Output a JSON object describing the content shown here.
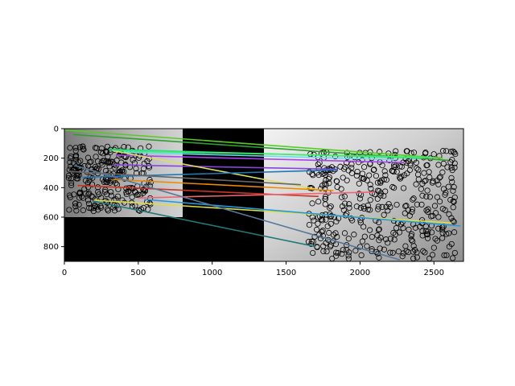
{
  "chart_data": {
    "type": "image-match-plot",
    "xlabel": "",
    "ylabel": "",
    "xlim": [
      0,
      2700
    ],
    "ylim": [
      900,
      0
    ],
    "x_ticks": [
      0,
      500,
      1000,
      1500,
      2000,
      2500
    ],
    "y_ticks": [
      0,
      200,
      400,
      600,
      800
    ],
    "x_tick_labels": [
      "0",
      "500",
      "1000",
      "1500",
      "2000",
      "2500"
    ],
    "y_tick_labels": [
      "0",
      "200",
      "400",
      "600",
      "800"
    ],
    "image_panels": [
      {
        "name": "left-image",
        "x": [
          0,
          800
        ],
        "y": [
          0,
          600
        ],
        "tone": "grayscale"
      },
      {
        "name": "right-image",
        "x": [
          1350,
          2700
        ],
        "y": [
          0,
          900
        ],
        "tone": "grayscale"
      }
    ],
    "matches": [
      {
        "x1": 5,
        "y1": 10,
        "x2": 2560,
        "y2": 200,
        "color": "#55cc22"
      },
      {
        "x1": 60,
        "y1": 40,
        "x2": 2600,
        "y2": 215,
        "color": "#2ca02c"
      },
      {
        "x1": 300,
        "y1": 140,
        "x2": 2420,
        "y2": 200,
        "color": "#22dd88"
      },
      {
        "x1": 320,
        "y1": 150,
        "x2": 2500,
        "y2": 195,
        "color": "#44ee66"
      },
      {
        "x1": 400,
        "y1": 160,
        "x2": 2250,
        "y2": 210,
        "color": "#66ddee"
      },
      {
        "x1": 350,
        "y1": 180,
        "x2": 2300,
        "y2": 230,
        "color": "#aa44ee"
      },
      {
        "x1": 330,
        "y1": 245,
        "x2": 1850,
        "y2": 275,
        "color": "#8844dd"
      },
      {
        "x1": 330,
        "y1": 150,
        "x2": 1750,
        "y2": 420,
        "color": "#dddd66"
      },
      {
        "x1": 120,
        "y1": 330,
        "x2": 1850,
        "y2": 280,
        "color": "#1f77b4"
      },
      {
        "x1": 330,
        "y1": 345,
        "x2": 1820,
        "y2": 420,
        "color": "#ee8800"
      },
      {
        "x1": 90,
        "y1": 385,
        "x2": 1720,
        "y2": 460,
        "color": "#cc3322"
      },
      {
        "x1": 500,
        "y1": 470,
        "x2": 2100,
        "y2": 430,
        "color": "#ee6677"
      },
      {
        "x1": 200,
        "y1": 485,
        "x2": 2620,
        "y2": 640,
        "color": "#dddd44"
      },
      {
        "x1": 540,
        "y1": 480,
        "x2": 2680,
        "y2": 660,
        "color": "#2299dd"
      },
      {
        "x1": 70,
        "y1": 250,
        "x2": 2270,
        "y2": 890,
        "color": "#557799"
      },
      {
        "x1": 190,
        "y1": 490,
        "x2": 1700,
        "y2": 800,
        "color": "#227777"
      },
      {
        "x1": 30,
        "y1": 290,
        "x2": 1600,
        "y2": 380,
        "color": "#666666"
      }
    ]
  }
}
